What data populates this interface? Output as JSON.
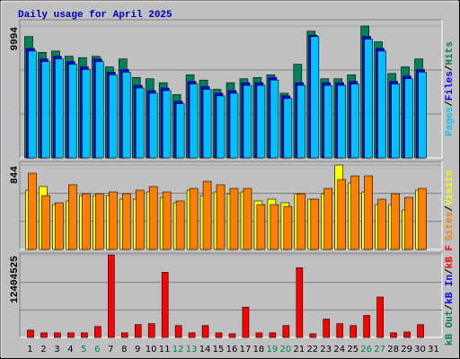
{
  "title": "Daily usage for April 2025",
  "categories": [
    "1",
    "2",
    "3",
    "4",
    "5",
    "6",
    "7",
    "8",
    "9",
    "10",
    "11",
    "12",
    "13",
    "14",
    "15",
    "16",
    "17",
    "18",
    "19",
    "20",
    "21",
    "22",
    "23",
    "24",
    "25",
    "26",
    "27",
    "28",
    "29",
    "30",
    "31"
  ],
  "weekends": [
    4,
    5,
    11,
    12,
    18,
    19,
    25,
    26
  ],
  "weekday_color": "#000000",
  "weekend_color": "#00805c",
  "grid_divisions": 3,
  "chart_data": [
    {
      "type": "bar",
      "ylim": [
        0,
        9994
      ],
      "yticks": [
        9994
      ],
      "series": [
        {
          "name": "Hits",
          "color": "#00805c",
          "values": [
            9200,
            8000,
            8100,
            7700,
            7600,
            7700,
            6900,
            7500,
            6100,
            6000,
            5700,
            4800,
            6300,
            5900,
            5200,
            5700,
            6000,
            6100,
            6300,
            4900,
            7100,
            9600,
            6000,
            6000,
            6300,
            9994,
            8800,
            6400,
            6900,
            7500,
            null
          ]
        },
        {
          "name": "Files",
          "color": "#0000ff",
          "values": [
            8300,
            7500,
            7700,
            7300,
            6900,
            7500,
            6500,
            6700,
            5500,
            5100,
            5300,
            4300,
            5800,
            5400,
            4900,
            5100,
            5700,
            5700,
            6100,
            4700,
            5700,
            9300,
            5700,
            5700,
            5800,
            9200,
            8300,
            5800,
            6200,
            6700,
            null
          ]
        },
        {
          "name": "Pages",
          "color": "#00c0ff",
          "values": [
            8100,
            7300,
            7500,
            7100,
            6700,
            7300,
            6300,
            6500,
            5300,
            4900,
            5100,
            4100,
            5600,
            5200,
            4700,
            4900,
            5500,
            5500,
            5900,
            4500,
            5500,
            9200,
            5500,
            5500,
            5600,
            9000,
            8100,
            5600,
            6000,
            6500,
            null
          ]
        }
      ]
    },
    {
      "type": "bar",
      "ylim": [
        0,
        844
      ],
      "yticks": [
        844
      ],
      "series": [
        {
          "name": "Visits",
          "color": "#ffff00",
          "values": [
            593,
            629,
            449,
            485,
            539,
            539,
            539,
            503,
            503,
            575,
            521,
            467,
            593,
            539,
            575,
            557,
            575,
            485,
            503,
            467,
            557,
            503,
            557,
            844,
            665,
            575,
            449,
            449,
            395,
            593,
            null
          ]
        },
        {
          "name": "Sites",
          "color": "#ff8000",
          "values": [
            763,
            539,
            467,
            647,
            557,
            557,
            575,
            557,
            593,
            629,
            575,
            485,
            611,
            682,
            647,
            611,
            611,
            449,
            449,
            431,
            557,
            503,
            611,
            700,
            736,
            736,
            503,
            557,
            521,
            611,
            null
          ]
        }
      ]
    },
    {
      "type": "bar",
      "ylim": [
        0,
        12404525
      ],
      "yticks": [
        12404525
      ],
      "series": [
        {
          "name": "kB F",
          "color": "#ff0000",
          "values": [
            1100000,
            690000,
            690000,
            690000,
            690000,
            1650000,
            12404525,
            690000,
            1930000,
            2070000,
            9790000,
            1790000,
            690000,
            1790000,
            690000,
            550000,
            4550000,
            690000,
            690000,
            1790000,
            10480000,
            550000,
            2760000,
            2070000,
            1790000,
            3310000,
            6070000,
            690000,
            830000,
            1930000,
            null
          ]
        }
      ],
      "legend_only": [
        {
          "name": "kB In",
          "color": "#0000ff"
        },
        {
          "name": "kB Out",
          "color": "#00805c"
        }
      ]
    }
  ]
}
